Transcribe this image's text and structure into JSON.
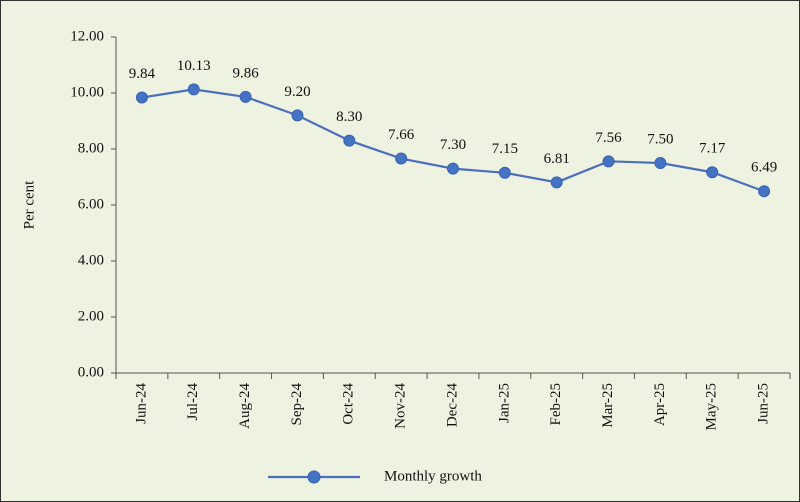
{
  "chart_data": {
    "type": "line",
    "y_label": "Per cent",
    "categories": [
      "Jun-24",
      "Jul-24",
      "Aug-24",
      "Sep-24",
      "Oct-24",
      "Nov-24",
      "Dec-24",
      "Jan-25",
      "Feb-25",
      "Mar-25",
      "Apr-25",
      "May-25",
      "Jun-25"
    ],
    "series": [
      {
        "name": "Monthly growth",
        "color": "#4a6fbd",
        "values": [
          9.84,
          10.13,
          9.86,
          9.2,
          8.3,
          7.66,
          7.3,
          7.15,
          6.81,
          7.56,
          7.5,
          7.17,
          6.49
        ],
        "value_labels": [
          "9.84",
          "10.13",
          "9.86",
          "9.20",
          "8.30",
          "7.66",
          "7.30",
          "7.15",
          "6.81",
          "7.56",
          "7.50",
          "7.17",
          "6.49"
        ]
      }
    ],
    "ylim": [
      0,
      12
    ],
    "yticks": [
      {
        "value": 0,
        "label": "0.00"
      },
      {
        "value": 2,
        "label": "2.00"
      },
      {
        "value": 4,
        "label": "4.00"
      },
      {
        "value": 6,
        "label": "6.00"
      },
      {
        "value": 8,
        "label": "8.00"
      },
      {
        "value": 10,
        "label": "10.00"
      },
      {
        "value": 12,
        "label": "12.00"
      }
    ],
    "grid": false,
    "legend": "bottom"
  }
}
